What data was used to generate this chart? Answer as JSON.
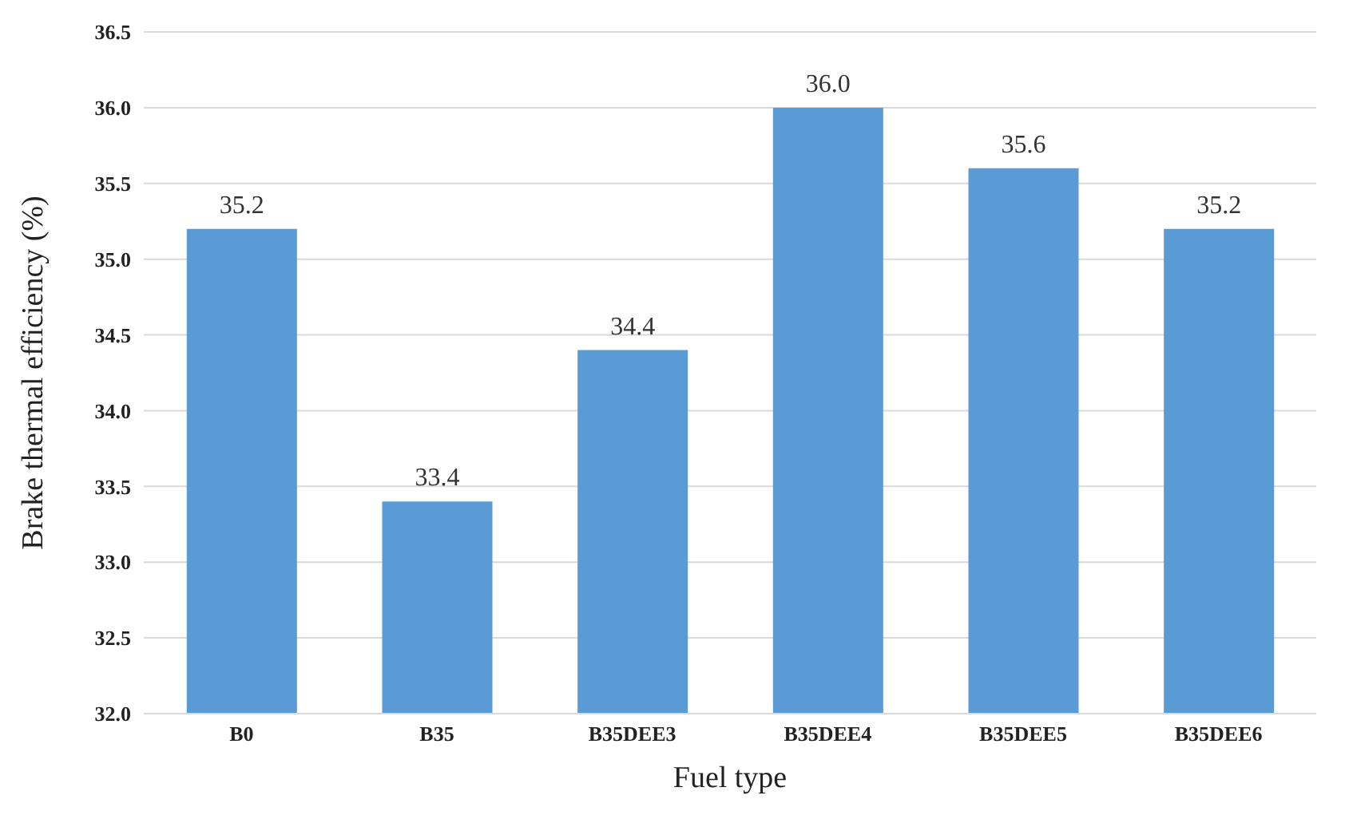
{
  "chart_data": {
    "type": "bar",
    "xlabel": "Fuel type",
    "ylabel": "Brake thermal efficiency (%)",
    "categories": [
      "B0",
      "B35",
      "B35DEE3",
      "B35DEE4",
      "B35DEE5",
      "B35DEE6"
    ],
    "values": [
      35.2,
      33.4,
      34.4,
      36.0,
      35.6,
      35.2
    ],
    "value_labels": [
      "35.2",
      "33.4",
      "34.4",
      "36.0",
      "35.6",
      "35.2"
    ],
    "color": "#5b9bd5",
    "ylim": [
      32,
      36.5
    ],
    "yticks": [
      {
        "value": 32,
        "label": "32.0"
      },
      {
        "value": 32.5,
        "label": "32.5"
      },
      {
        "value": 33,
        "label": "33.0"
      },
      {
        "value": 33.5,
        "label": "33.5"
      },
      {
        "value": 34,
        "label": "34.0"
      },
      {
        "value": 34.5,
        "label": "34.5"
      },
      {
        "value": 35,
        "label": "35.0"
      },
      {
        "value": 35.5,
        "label": "35.5"
      },
      {
        "value": 36,
        "label": "36.0"
      },
      {
        "value": 36.5,
        "label": "36.5"
      }
    ],
    "grid": "y"
  }
}
